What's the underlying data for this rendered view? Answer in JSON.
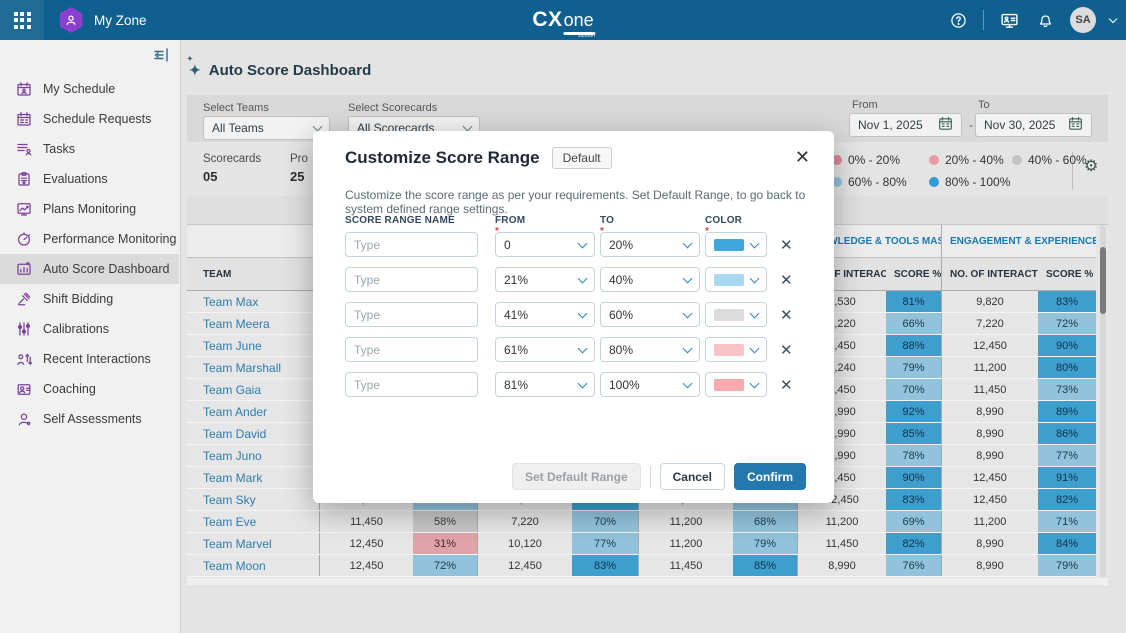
{
  "topbar": {
    "product": "My Zone",
    "logo": "CX",
    "logo_one": "one",
    "logo_sub": "Mpower",
    "avatar": "SA",
    "icons": [
      "apps-grid-icon",
      "workspace-hexagon-icon",
      "help-icon",
      "screen-share-icon",
      "notifications-bell-icon",
      "user-caret-icon"
    ]
  },
  "sidebar": {
    "items": [
      {
        "label": "My Schedule",
        "icon": "my-schedule-icon",
        "active": false
      },
      {
        "label": "Schedule Requests",
        "icon": "schedule-requests-icon",
        "active": false
      },
      {
        "label": "Tasks",
        "icon": "tasks-icon",
        "active": false
      },
      {
        "label": "Evaluations",
        "icon": "evaluations-icon",
        "active": false
      },
      {
        "label": "Plans Monitoring",
        "icon": "plans-monitoring-icon",
        "active": false
      },
      {
        "label": "Performance Monitoring",
        "icon": "performance-monitoring-icon",
        "active": false
      },
      {
        "label": "Auto Score Dashboard",
        "icon": "auto-score-dashboard-icon",
        "active": true
      },
      {
        "label": "Shift Bidding",
        "icon": "shift-bidding-icon",
        "active": false
      },
      {
        "label": "Calibrations",
        "icon": "calibrations-icon",
        "active": false
      },
      {
        "label": "Recent Interactions",
        "icon": "recent-interactions-icon",
        "active": false
      },
      {
        "label": "Coaching",
        "icon": "coaching-icon",
        "active": false
      },
      {
        "label": "Self Assessments",
        "icon": "self-assessments-icon",
        "active": false
      }
    ]
  },
  "page": {
    "title": "Auto Score Dashboard",
    "filters": {
      "teams_label": "Select Teams",
      "teams_value": "All Teams",
      "scorecards_label": "Select Scorecards",
      "scorecards_value": "All Scorecards",
      "from_label": "From",
      "from_value": "Nov 1, 2025",
      "range_sep": "-",
      "to_label": "To",
      "to_value": "Nov 30, 2025"
    },
    "stats": {
      "scorecards_label": "Scorecards",
      "scorecards_value": "05",
      "partial_label": "Pro",
      "partial_value": "25"
    },
    "legend": {
      "items": [
        {
          "label": "0% - 20%",
          "color": "#DE8A92"
        },
        {
          "label": "20% - 40%",
          "color": "#E89CA2"
        },
        {
          "label": "40% - 60%",
          "color": "#C4C4C4"
        },
        {
          "label": "60% - 80%",
          "color": "#8FC3DB"
        },
        {
          "label": "80% - 100%",
          "color": "#2E9BD6"
        }
      ],
      "gear_icon": "settings-gear-icon"
    },
    "table": {
      "team_header": "TEAM",
      "group_headers": [
        "",
        "",
        "",
        "KNOWLEDGE & TOOLS MASTERY...",
        "ENGAGEMENT & EXPERIENCE"
      ],
      "sub_header_interactions": "NO. OF INTERACTI...",
      "sub_header_score": "SCORE %",
      "sub_visible": [
        false,
        false,
        false,
        true,
        true
      ],
      "score_colors": {
        "dark": "#3E9FCE",
        "light": "#92C3DB",
        "gray": "#C6C6C6",
        "pink": "#DFA3A8"
      },
      "rows": [
        {
          "team": "Team Max",
          "g": [
            null,
            null,
            null,
            {
              "n": "9,530",
              "s": "81%",
              "lvl": "dark"
            },
            {
              "n": "9,820",
              "s": "83%",
              "lvl": "dark"
            }
          ]
        },
        {
          "team": "Team Meera",
          "g": [
            null,
            null,
            null,
            {
              "n": "7,220",
              "s": "66%",
              "lvl": "light"
            },
            {
              "n": "7,220",
              "s": "72%",
              "lvl": "light"
            }
          ]
        },
        {
          "team": "Team June",
          "g": [
            null,
            null,
            null,
            {
              "n": "2,450",
              "s": "88%",
              "lvl": "dark"
            },
            {
              "n": "12,450",
              "s": "90%",
              "lvl": "dark"
            }
          ]
        },
        {
          "team": "Team Marshall",
          "g": [
            null,
            null,
            null,
            {
              "n": "1,240",
              "s": "79%",
              "lvl": "light"
            },
            {
              "n": "11,200",
              "s": "80%",
              "lvl": "dark"
            }
          ]
        },
        {
          "team": "Team Gaia",
          "g": [
            null,
            null,
            null,
            {
              "n": "1,450",
              "s": "70%",
              "lvl": "light"
            },
            {
              "n": "11,450",
              "s": "73%",
              "lvl": "light"
            }
          ]
        },
        {
          "team": "Team Ander",
          "g": [
            null,
            null,
            null,
            {
              "n": "8,990",
              "s": "92%",
              "lvl": "dark"
            },
            {
              "n": "8,990",
              "s": "89%",
              "lvl": "dark"
            }
          ]
        },
        {
          "team": "Team David",
          "g": [
            null,
            null,
            null,
            {
              "n": "8,990",
              "s": "85%",
              "lvl": "dark"
            },
            {
              "n": "8,990",
              "s": "86%",
              "lvl": "dark"
            }
          ]
        },
        {
          "team": "Team Juno",
          "g": [
            null,
            null,
            null,
            {
              "n": "8,990",
              "s": "78%",
              "lvl": "light"
            },
            {
              "n": "8,990",
              "s": "77%",
              "lvl": "light"
            }
          ]
        },
        {
          "team": "Team Mark",
          "g": [
            null,
            null,
            null,
            {
              "n": "2,450",
              "s": "90%",
              "lvl": "dark"
            },
            {
              "n": "12,450",
              "s": "91%",
              "lvl": "dark"
            }
          ]
        },
        {
          "team": "Team Sky",
          "g": [
            {
              "n": "11,200",
              "s": "76%",
              "lvl": "light"
            },
            {
              "n": "11,450",
              "s": "84%",
              "lvl": "dark"
            },
            {
              "n": "11,450",
              "s": "77%",
              "lvl": "light"
            },
            {
              "n": "12,450",
              "s": "83%",
              "lvl": "dark"
            },
            {
              "n": "12,450",
              "s": "82%",
              "lvl": "dark"
            }
          ]
        },
        {
          "team": "Team Eve",
          "g": [
            {
              "n": "11,450",
              "s": "58%",
              "lvl": "gray"
            },
            {
              "n": "7,220",
              "s": "70%",
              "lvl": "light"
            },
            {
              "n": "11,200",
              "s": "68%",
              "lvl": "light"
            },
            {
              "n": "11,200",
              "s": "69%",
              "lvl": "light"
            },
            {
              "n": "11,200",
              "s": "71%",
              "lvl": "light"
            }
          ]
        },
        {
          "team": "Team Marvel",
          "g": [
            {
              "n": "12,450",
              "s": "31%",
              "lvl": "pink"
            },
            {
              "n": "10,120",
              "s": "77%",
              "lvl": "light"
            },
            {
              "n": "11,200",
              "s": "79%",
              "lvl": "light"
            },
            {
              "n": "11,450",
              "s": "82%",
              "lvl": "dark"
            },
            {
              "n": "8,990",
              "s": "84%",
              "lvl": "dark"
            }
          ]
        },
        {
          "team": "Team Moon",
          "g": [
            {
              "n": "12,450",
              "s": "72%",
              "lvl": "light"
            },
            {
              "n": "12,450",
              "s": "83%",
              "lvl": "dark"
            },
            {
              "n": "11,450",
              "s": "85%",
              "lvl": "dark"
            },
            {
              "n": "8,990",
              "s": "76%",
              "lvl": "light"
            },
            {
              "n": "8,990",
              "s": "79%",
              "lvl": "light"
            }
          ]
        }
      ]
    }
  },
  "modal": {
    "title": "Customize Score Range",
    "badge": "Default",
    "close_icon": "close-icon",
    "description": "Customize the score range as per your requirements. Set Default Range, to go back to system defined range settings.",
    "columns": {
      "name": "SCORE RANGE NAME",
      "from": "FROM",
      "to": "TO",
      "color": "COLOR"
    },
    "name_placeholder": "Type",
    "rows": [
      {
        "from": "0",
        "to": "20%",
        "color": "#3FA7DB"
      },
      {
        "from": "21%",
        "to": "40%",
        "color": "#A8D8F0"
      },
      {
        "from": "41%",
        "to": "60%",
        "color": "#DCDCDC"
      },
      {
        "from": "61%",
        "to": "80%",
        "color": "#F9C3C7"
      },
      {
        "from": "81%",
        "to": "100%",
        "color": "#F9A9AE"
      }
    ],
    "buttons": {
      "set_default": "Set Default Range",
      "cancel": "Cancel",
      "confirm": "Confirm"
    }
  }
}
